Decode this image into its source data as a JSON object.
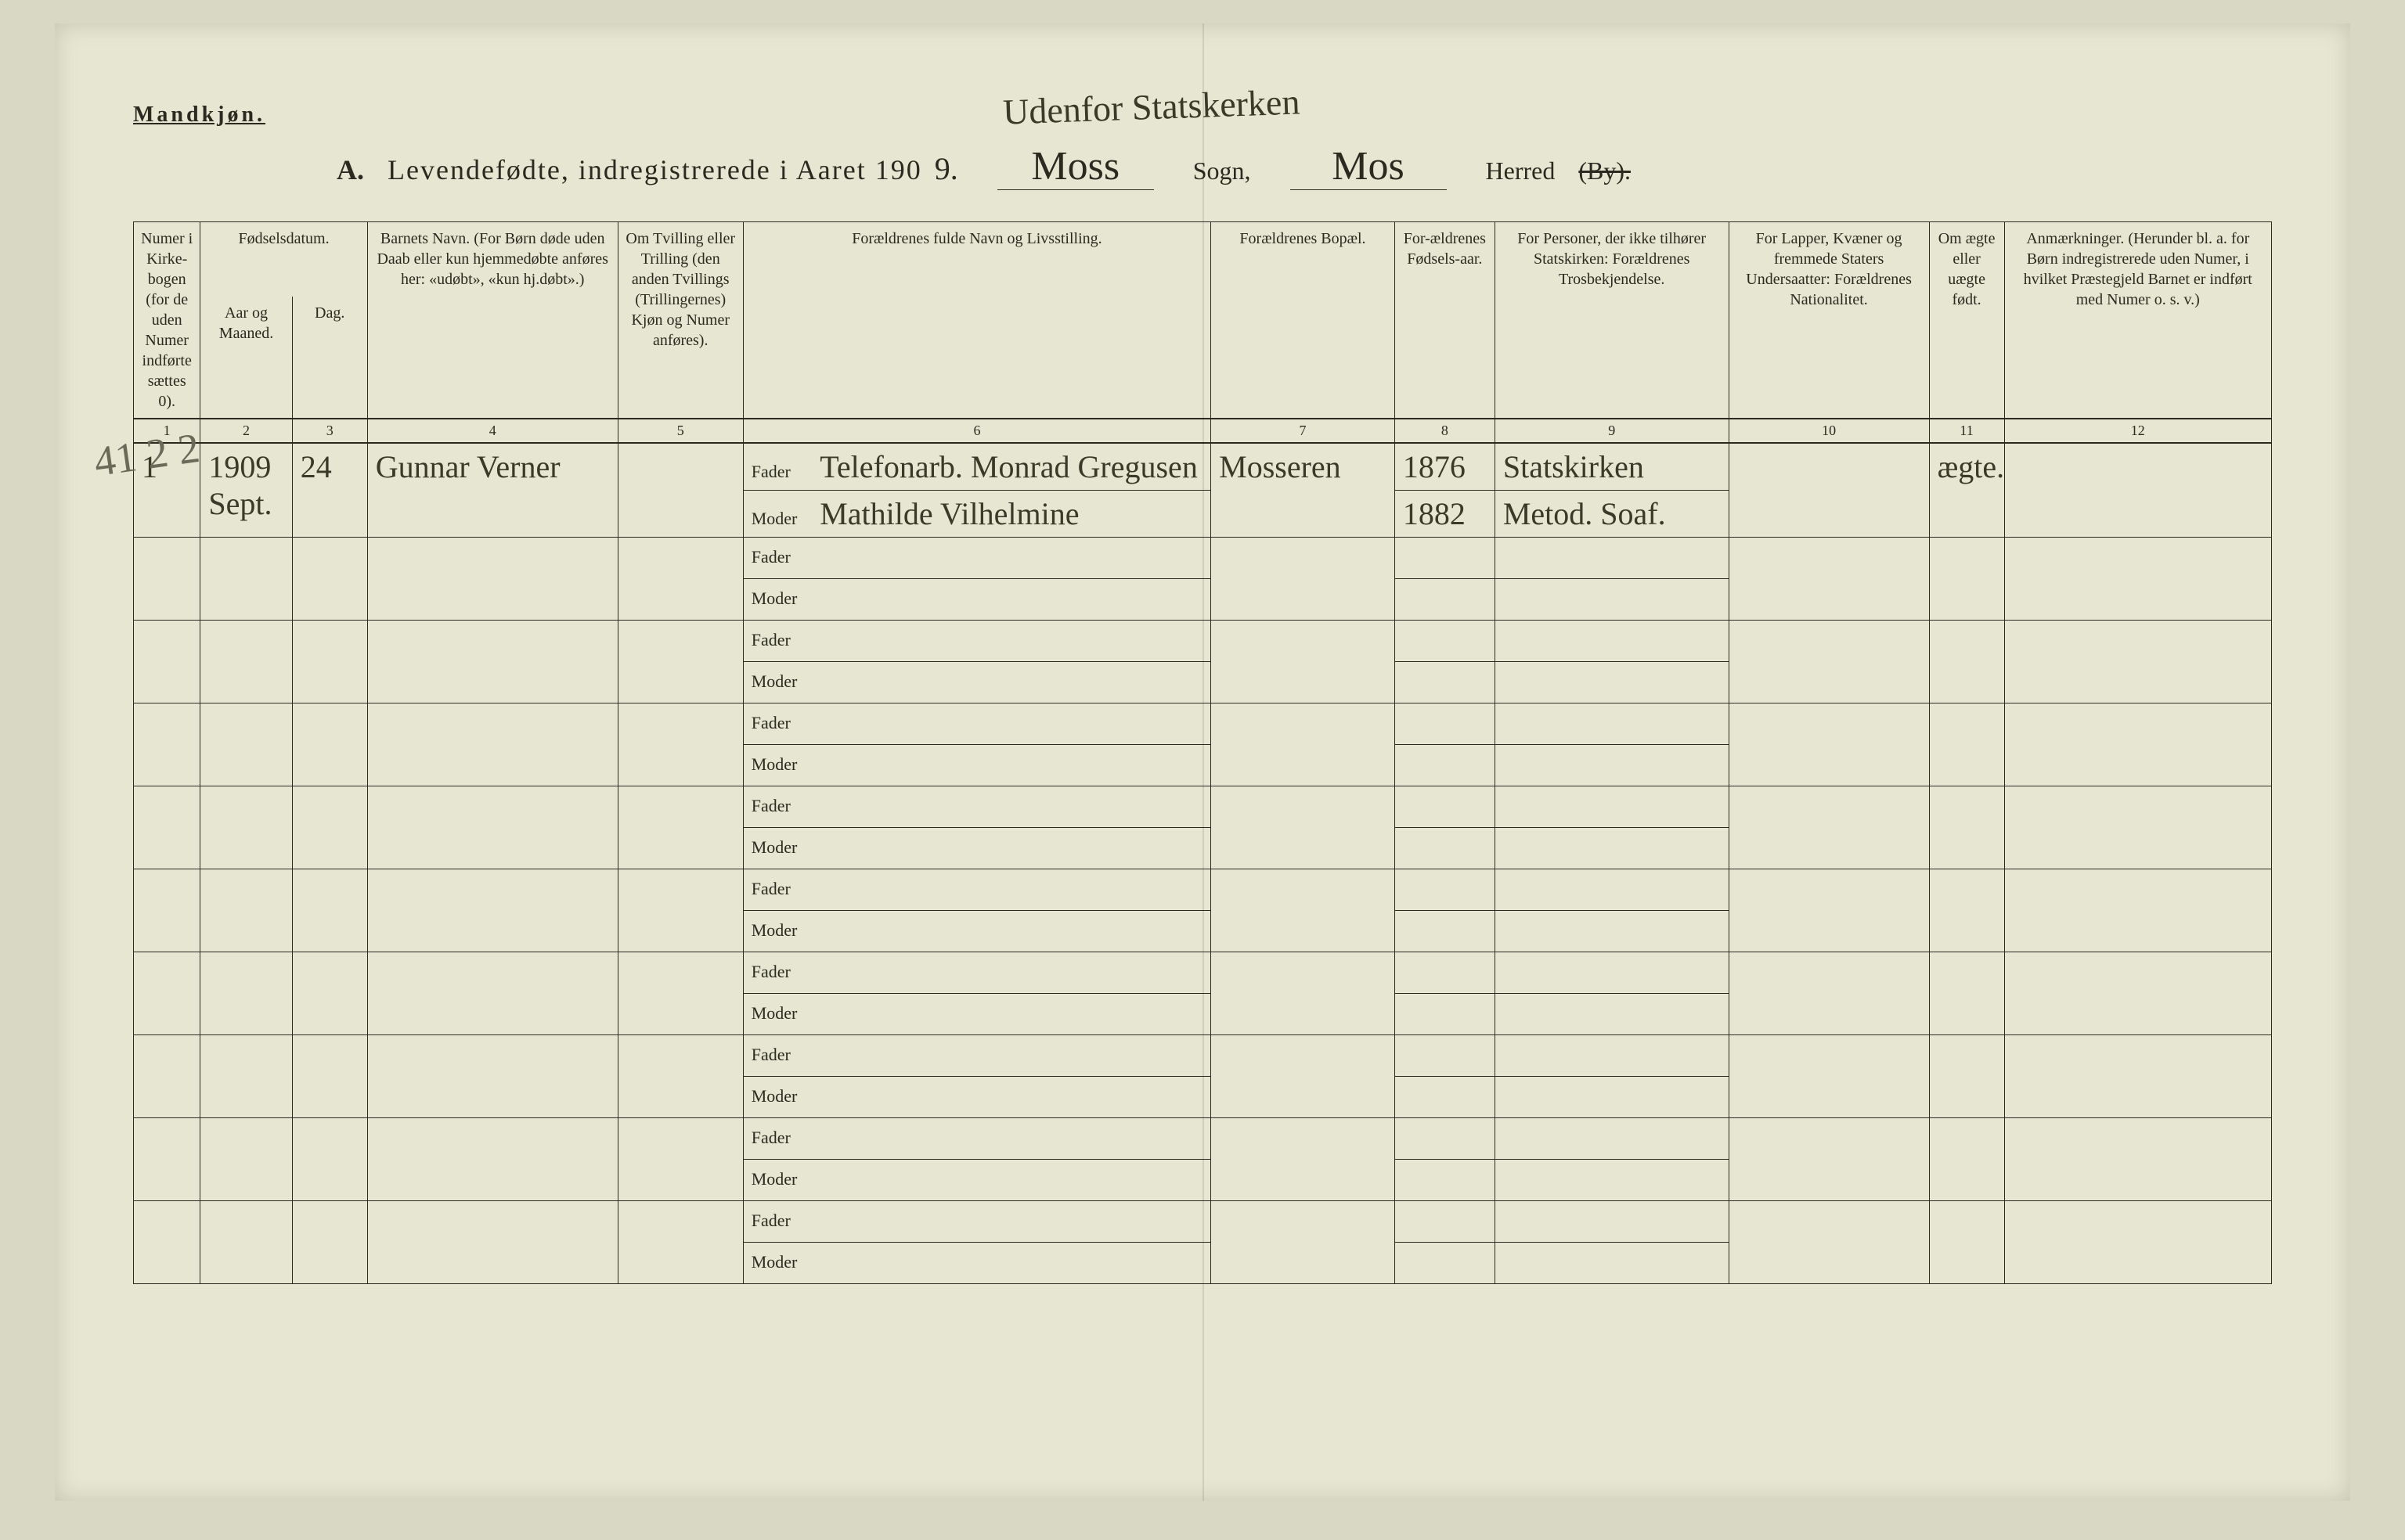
{
  "header": {
    "mandkjon": "Mandkjøn.",
    "handwritten_top": "Udenfor Statskerken",
    "title_prefix": "A.",
    "title_main": "Levendefødte, indregistrerede i Aaret 190",
    "year_suffix": "9.",
    "sogn_value": "Moss",
    "sogn_label": "Sogn,",
    "herred_value": "Mos",
    "herred_label": "Herred",
    "by_struck": "(By)."
  },
  "columns": {
    "c1": "Numer i Kirke-bogen (for de uden Numer indførte sættes 0).",
    "c2_top": "Fødselsdatum.",
    "c2a": "Aar og Maaned.",
    "c2b": "Dag.",
    "c4": "Barnets Navn.\n(For Børn døde uden Daab eller kun hjemmedøbte anføres her: «udøbt», «kun hj.døbt».)",
    "c5": "Om Tvilling eller Trilling (den anden Tvillings (Trillingernes) Kjøn og Numer anføres).",
    "c6": "Forældrenes fulde Navn og Livsstilling.",
    "c7": "Forældrenes Bopæl.",
    "c8": "For-ældrenes Fødsels-aar.",
    "c9": "For Personer, der ikke tilhører Statskirken: Forældrenes Trosbekjendelse.",
    "c10": "For Lapper, Kvæner og fremmede Staters Undersaatter: Forældrenes Nationalitet.",
    "c11": "Om ægte eller uægte født.",
    "c12": "Anmærkninger.\n(Herunder bl. a. for Børn indregistrerede uden Numer, i hvilket Præstegjeld Barnet er indført med Numer o. s. v.)"
  },
  "colnums": [
    "1",
    "2",
    "3",
    "4",
    "5",
    "6",
    "7",
    "8",
    "9",
    "10",
    "11",
    "12"
  ],
  "fm": {
    "fader": "Fader",
    "moder": "Moder"
  },
  "entries": [
    {
      "num": "1",
      "year_month": "1909 Sept.",
      "day": "24",
      "child_name": "Gunnar Verner",
      "twin": "",
      "fader": "Telefonarb. Monrad Gregusen",
      "moder": "Mathilde Vilhelmine",
      "bopael": "Mosseren",
      "fodselaar_f": "1876",
      "fodselaar_m": "1882",
      "tros_f": "Statskirken",
      "tros_m": "Metod. Soaf.",
      "nat": "",
      "aegte": "ægte.",
      "anm": ""
    }
  ],
  "margin_note": "41 2 2",
  "style": {
    "page_bg": "#e6e6d2",
    "outer_bg": "#d8d8c4",
    "ink": "#2a2a20",
    "hand_ink": "#3a3a2a",
    "blank_rows": 9
  }
}
